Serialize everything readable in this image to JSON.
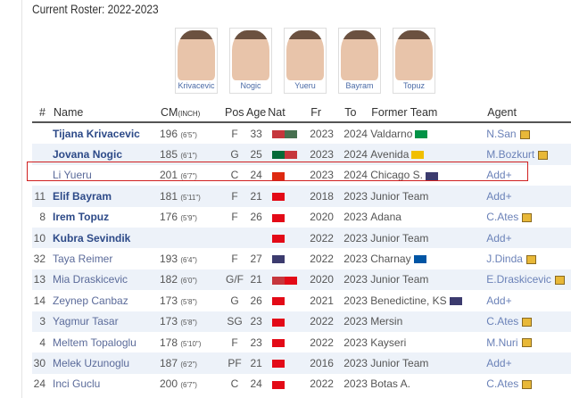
{
  "title": "Current Roster: 2022-2023",
  "photos": [
    "Krivacevic",
    "Nogic",
    "Yueru",
    "Bayram",
    "Topuz"
  ],
  "headers": [
    "#",
    "Name",
    "CM",
    "(INCH)",
    "Pos",
    "Age",
    "Nat",
    "Fr",
    "To",
    "Former Team",
    "Agent"
  ],
  "rows": [
    {
      "num": "",
      "name": "Tijana Krivacevic",
      "bold": true,
      "cm": "196",
      "inch": "(6'5\")",
      "pos": "F",
      "age": "33",
      "nat": [
        "#c6363c",
        "#477050"
      ],
      "fr": "2023",
      "to": "2024",
      "team": "Valdarno",
      "team_flag": "#009246",
      "agent": "N.San",
      "edit": true
    },
    {
      "num": "",
      "name": "Jovana Nogic",
      "bold": true,
      "cm": "185",
      "inch": "(6'1\")",
      "pos": "G",
      "age": "25",
      "nat": [
        "#046a38",
        "#c6363c"
      ],
      "fr": "2023",
      "to": "2024",
      "team": "Avenida",
      "team_flag": "#f1bf00",
      "agent": "M.Bozkurt",
      "edit": true
    },
    {
      "num": "",
      "name": "Li Yueru",
      "bold": false,
      "cm": "201",
      "inch": "(6'7\")",
      "pos": "C",
      "age": "24",
      "nat": [
        "#de2910"
      ],
      "fr": "2023",
      "to": "2024",
      "team": "Chicago S.",
      "team_flag": "#3c3b6e",
      "agent": "Add+",
      "edit": false
    },
    {
      "num": "11",
      "name": "Elif Bayram",
      "bold": true,
      "cm": "181",
      "inch": "(5'11\")",
      "pos": "F",
      "age": "21",
      "nat": [
        "#e30a17"
      ],
      "fr": "2018",
      "to": "2023",
      "team": "Junior Team",
      "team_flag": "",
      "agent": "Add+",
      "edit": false
    },
    {
      "num": "8",
      "name": "Irem Topuz",
      "bold": true,
      "cm": "176",
      "inch": "(5'9\")",
      "pos": "F",
      "age": "26",
      "nat": [
        "#e30a17"
      ],
      "fr": "2020",
      "to": "2023",
      "team": "Adana",
      "team_flag": "",
      "agent": "C.Ates",
      "edit": true
    },
    {
      "num": "10",
      "name": "Kubra Sevindik",
      "bold": true,
      "cm": "",
      "inch": "",
      "pos": "",
      "age": "",
      "nat": [
        "#e30a17"
      ],
      "fr": "2022",
      "to": "2023",
      "team": "Junior Team",
      "team_flag": "",
      "agent": "Add+",
      "edit": false
    },
    {
      "num": "32",
      "name": "Taya Reimer",
      "bold": false,
      "cm": "193",
      "inch": "(6'4\")",
      "pos": "F",
      "age": "27",
      "nat": [
        "#3c3b6e"
      ],
      "fr": "2022",
      "to": "2023",
      "team": "Charnay",
      "team_flag": "#0055a4",
      "agent": "J.Dinda",
      "edit": true
    },
    {
      "num": "13",
      "name": "Mia Draskicevic",
      "bold": false,
      "cm": "182",
      "inch": "(6'0\")",
      "pos": "G/F",
      "age": "21",
      "nat": [
        "#c6363c",
        "#e30a17"
      ],
      "fr": "2020",
      "to": "2023",
      "team": "Junior Team",
      "team_flag": "",
      "agent": "E.Draskicevic",
      "edit": true
    },
    {
      "num": "14",
      "name": "Zeynep Canbaz",
      "bold": false,
      "cm": "173",
      "inch": "(5'8\")",
      "pos": "G",
      "age": "26",
      "nat": [
        "#e30a17"
      ],
      "fr": "2021",
      "to": "2023",
      "team": "Benedictine, KS",
      "team_flag": "#3c3b6e",
      "agent": "Add+",
      "edit": false
    },
    {
      "num": "3",
      "name": "Yagmur Tasar",
      "bold": false,
      "cm": "173",
      "inch": "(5'8\")",
      "pos": "SG",
      "age": "23",
      "nat": [
        "#e30a17"
      ],
      "fr": "2022",
      "to": "2023",
      "team": "Mersin",
      "team_flag": "",
      "agent": "C.Ates",
      "edit": true
    },
    {
      "num": "4",
      "name": "Meltem Topaloglu",
      "bold": false,
      "cm": "178",
      "inch": "(5'10\")",
      "pos": "F",
      "age": "23",
      "nat": [
        "#e30a17"
      ],
      "fr": "2022",
      "to": "2023",
      "team": "Kayseri",
      "team_flag": "",
      "agent": "M.Nuri",
      "edit": true
    },
    {
      "num": "30",
      "name": "Melek Uzunoglu",
      "bold": false,
      "cm": "187",
      "inch": "(6'2\")",
      "pos": "PF",
      "age": "21",
      "nat": [
        "#e30a17"
      ],
      "fr": "2016",
      "to": "2023",
      "team": "Junior Team",
      "team_flag": "",
      "agent": "Add+",
      "edit": false
    },
    {
      "num": "24",
      "name": "Inci Guclu",
      "bold": false,
      "cm": "200",
      "inch": "(6'7\")",
      "pos": "C",
      "age": "24",
      "nat": [
        "#e30a17"
      ],
      "fr": "2022",
      "to": "2023",
      "team": "Botas A.",
      "team_flag": "",
      "agent": "C.Ates",
      "edit": true
    }
  ]
}
